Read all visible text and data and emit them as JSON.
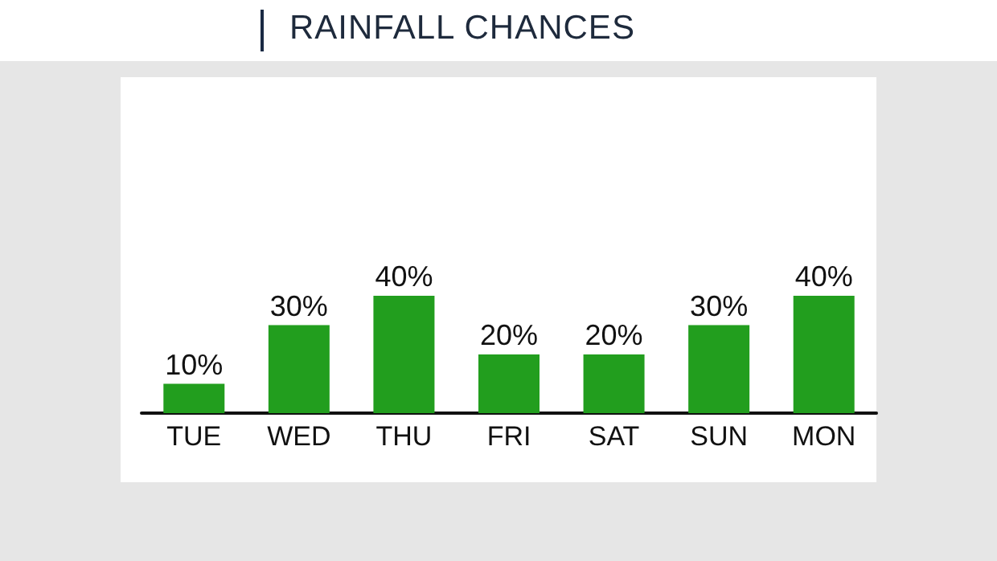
{
  "chart_data": {
    "type": "bar",
    "title": "RAINFALL CHANCES",
    "categories": [
      "TUE",
      "WED",
      "THU",
      "FRI",
      "SAT",
      "SUN",
      "MON"
    ],
    "values": [
      10,
      30,
      40,
      20,
      20,
      30,
      40
    ],
    "value_labels": [
      "10%",
      "30%",
      "40%",
      "20%",
      "20%",
      "30%",
      "40%"
    ],
    "color": "#229e1e"
  }
}
